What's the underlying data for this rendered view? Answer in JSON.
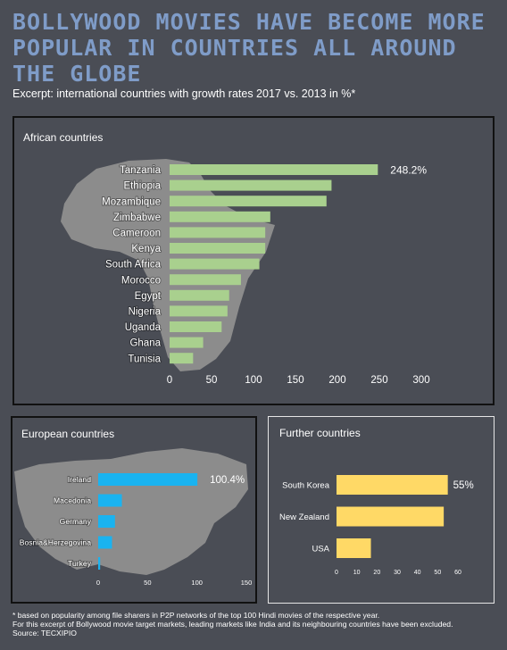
{
  "title": "BOLLYWOOD MOVIES HAVE BECOME MORE POPULAR IN COUNTRIES ALL AROUND THE GLOBE",
  "subtitle": "Excerpt: international countries with growth rates 2017 vs. 2013 in %*",
  "colors": {
    "background": "#4a4d55",
    "map": "#8c8c8c",
    "african_bars": "#a9d08e",
    "european_bars": "#1ab3f0",
    "further_bars": "#ffd966",
    "title": "#7f9cc8"
  },
  "footnote": {
    "line1": "* based on popularity among file sharers in P2P networks of the top 100 Hindi movies of the respective year.",
    "line2": "For this excerpt of Bollywood movie target markets, leading markets like India and its neighbouring countries have been excluded.",
    "line3": "Source: TECXIPIO"
  },
  "chart_data": [
    {
      "type": "bar",
      "orientation": "horizontal",
      "title": "African countries",
      "categories": [
        "Tanzania",
        "Ethiopia",
        "Mozambique",
        "Zimbabwe",
        "Cameroon",
        "Kenya",
        "South Africa",
        "Morocco",
        "Egypt",
        "Nigeria",
        "Uganda",
        "Ghana",
        "Tunisia"
      ],
      "values": [
        248.2,
        193,
        187,
        120,
        114,
        114,
        107,
        85,
        71,
        69,
        62,
        40,
        28
      ],
      "data_labels": {
        "Tanzania": "248.2%"
      },
      "xlim": [
        0,
        300
      ],
      "xticks": [
        0,
        50,
        100,
        150,
        200,
        250,
        300
      ],
      "grid": false
    },
    {
      "type": "bar",
      "orientation": "horizontal",
      "title": "European countries",
      "categories": [
        "Ireland",
        "Macedonia",
        "Germany",
        "Bosnia&Herzegovina",
        "Turkey"
      ],
      "values": [
        100.4,
        24,
        17,
        14,
        2
      ],
      "data_labels": {
        "Ireland": "100.4%"
      },
      "xlim": [
        0,
        150
      ],
      "xticks": [
        0,
        50,
        100,
        150
      ],
      "grid": false
    },
    {
      "type": "bar",
      "orientation": "horizontal",
      "title": "Further countries",
      "categories": [
        "South Korea",
        "New Zealand",
        "USA"
      ],
      "values": [
        55,
        53,
        17
      ],
      "data_labels": {
        "South Korea": "55%"
      },
      "xlim": [
        0,
        60
      ],
      "xticks": [
        0,
        10,
        20,
        30,
        40,
        50,
        60
      ],
      "grid": false
    }
  ]
}
